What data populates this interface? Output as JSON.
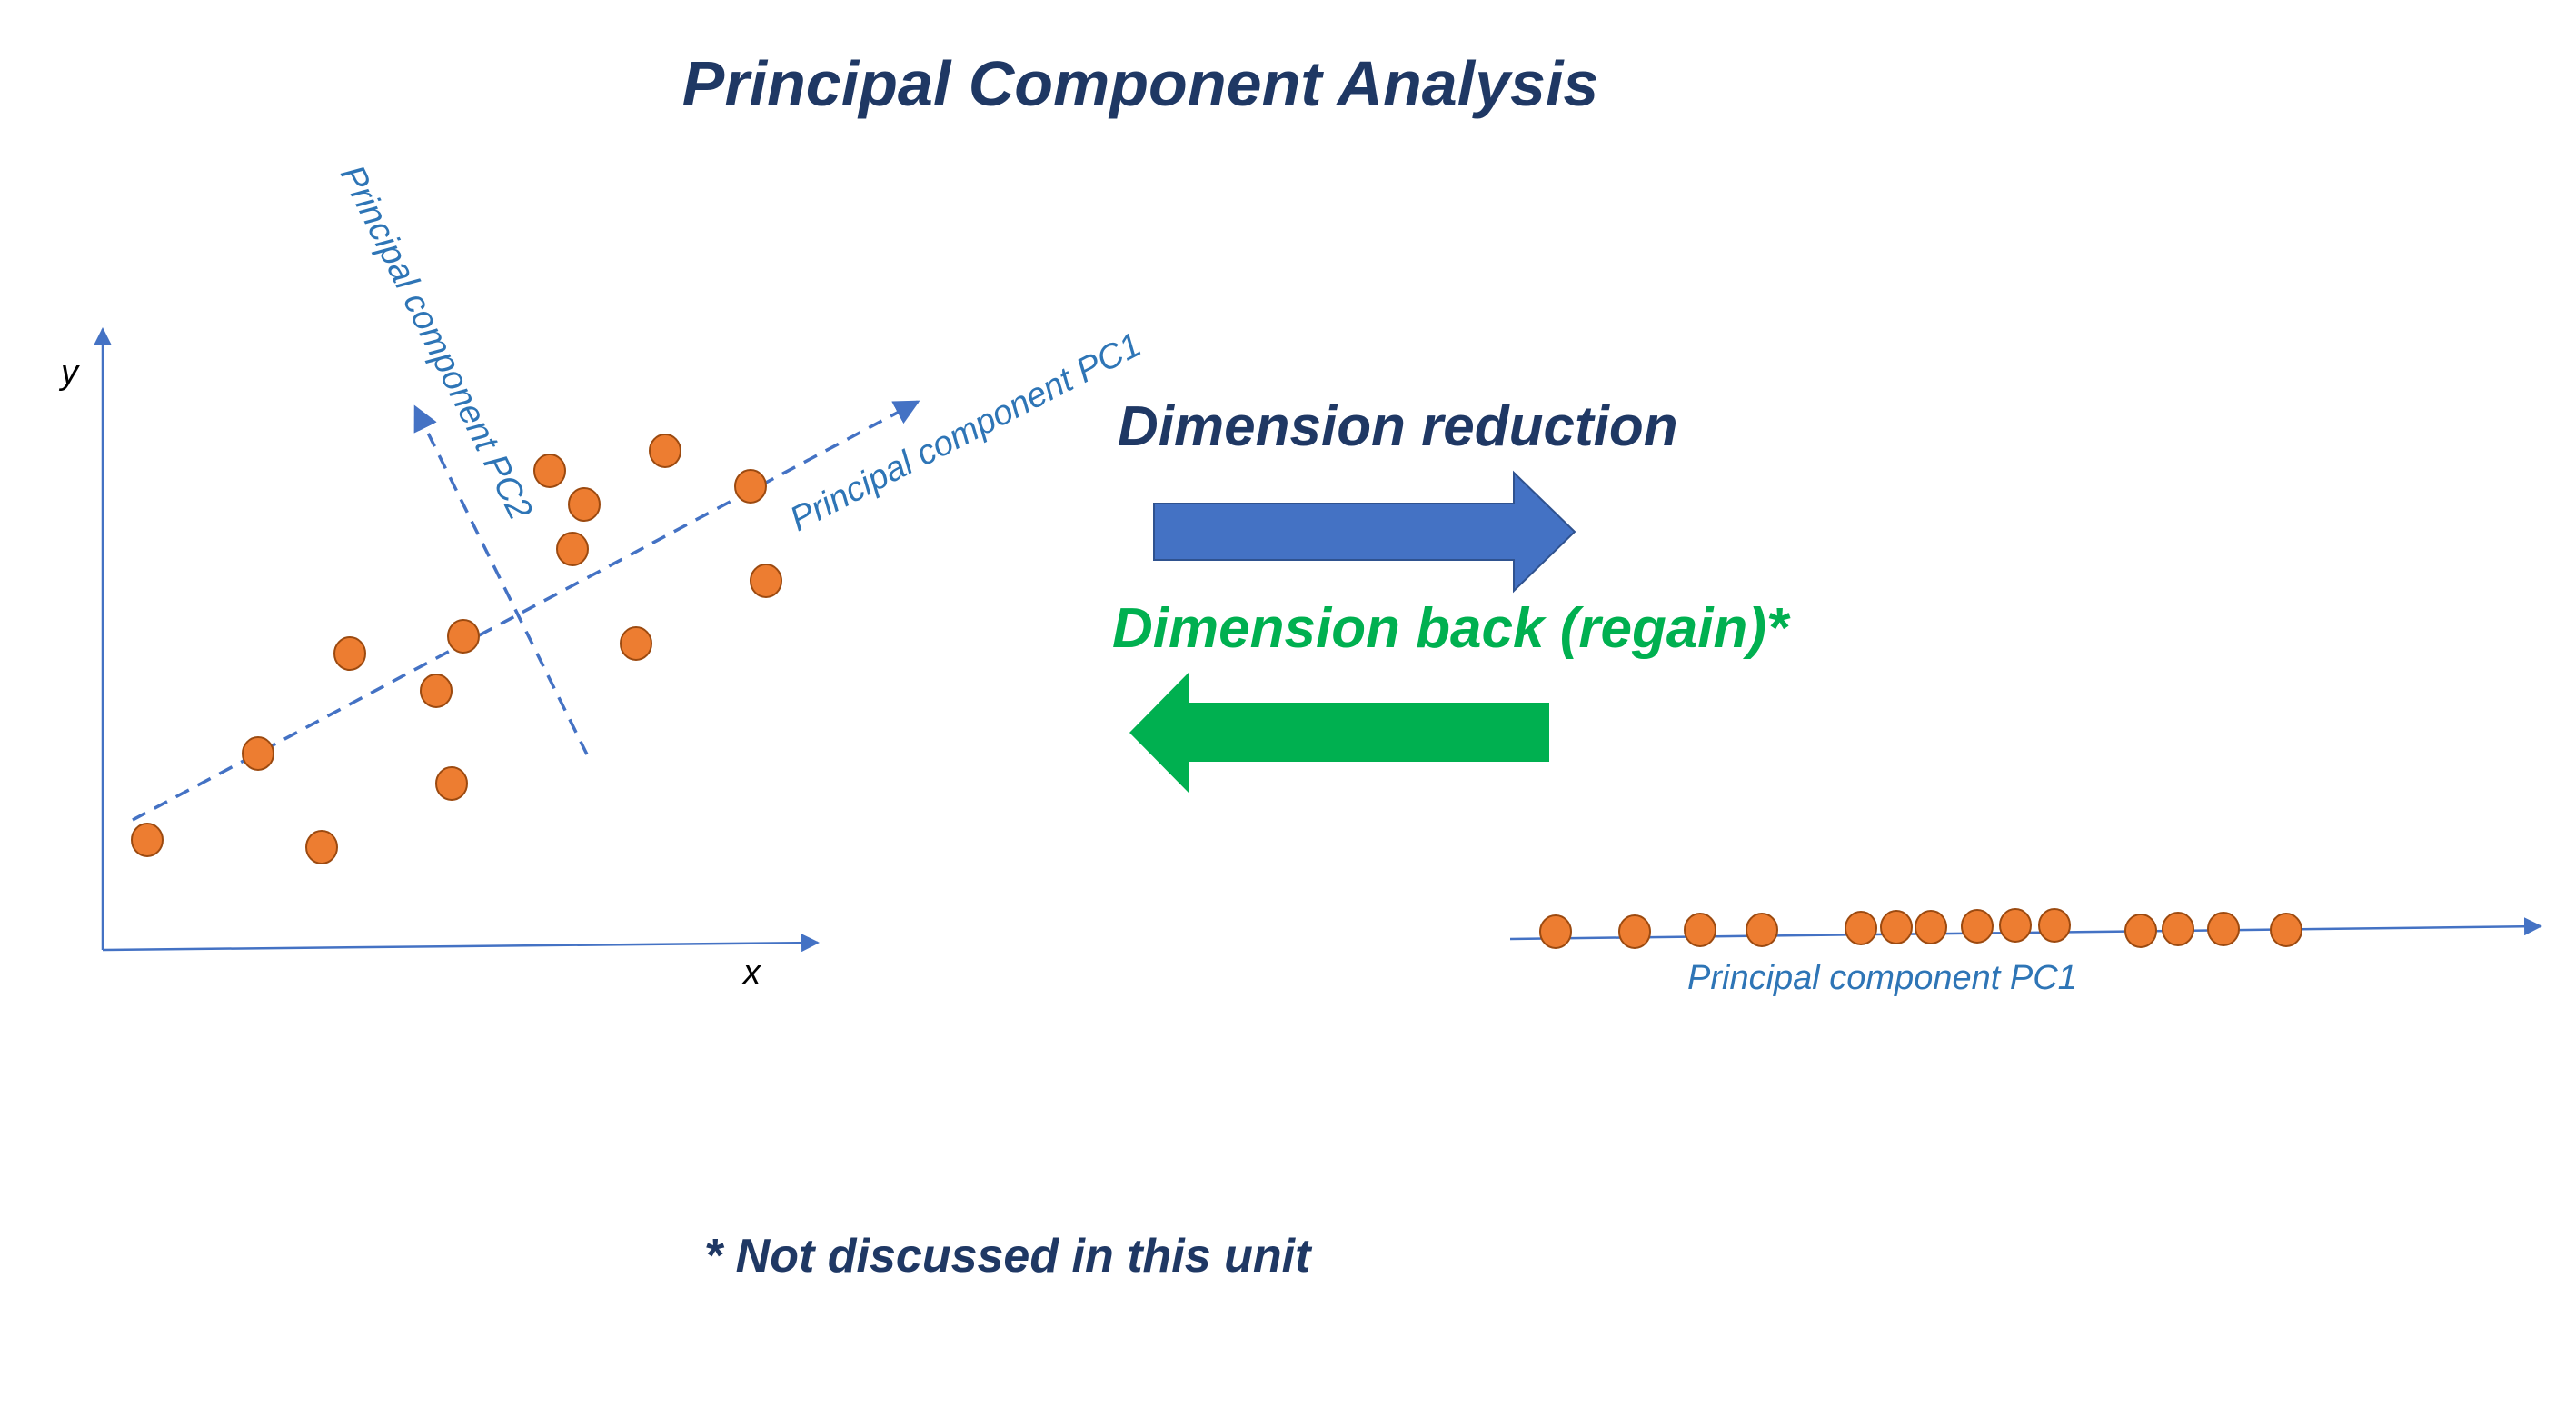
{
  "title": "Principal Component Analysis",
  "footnote": "* Not discussed in this unit",
  "left_plot": {
    "x_axis_label": "x",
    "y_axis_label": "y",
    "pc1_label": "Principal component PC1",
    "pc2_label": "Principal component PC2"
  },
  "arrows": {
    "reduction_label": "Dimension reduction",
    "regain_label": "Dimension back (regain)*"
  },
  "right_plot": {
    "axis_label": "Principal component PC1"
  },
  "colors": {
    "title": "#1f3864",
    "axis": "#4472c4",
    "component_label": "#2e75b6",
    "point_fill": "#ed7d31",
    "point_stroke": "#9c4a10",
    "reduction_arrow": "#4472c4",
    "regain_arrow": "#00b050",
    "regain_text": "#00b050"
  }
}
